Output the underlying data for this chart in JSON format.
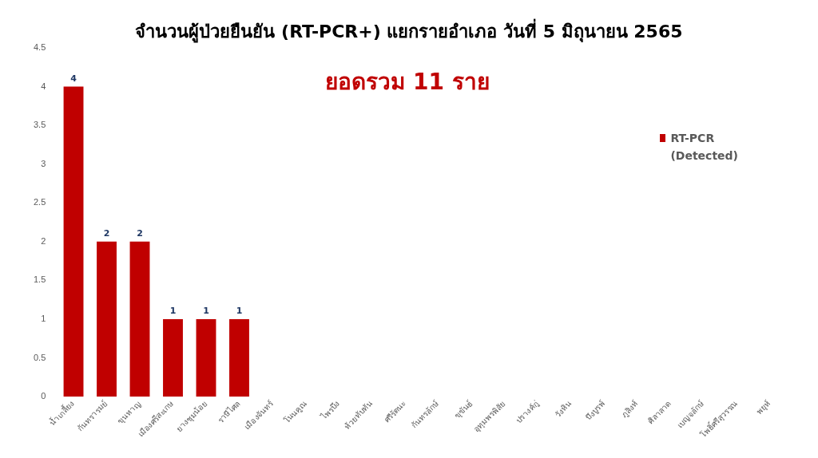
{
  "chart_data": {
    "type": "bar",
    "title": "จำนวนผู้ป่วยยืนยัน (RT-PCR+) แยกรายอำเภอ วันที่ 5 มิถุนายน 2565",
    "subtitle": "ยอดรวม 11 ราย",
    "categories": [
      "น้ำเกลี้ยง",
      "กันทรารมย์",
      "ขุนหาญ",
      "เมืองศรีสะเกษ",
      "ยางชุมน้อย",
      "ราษีไศล",
      "เมืองจันทร์",
      "โนนคูณ",
      "ไพรบึง",
      "ห้วยทับทัน",
      "ศรีรัตนะ",
      "กันทรลักษ์",
      "ขุขันธ์",
      "อุทุมพรพิสัย",
      "ปรางค์กู่",
      "วังหิน",
      "บึงบูรพ์",
      "ภูสิงห์",
      "ศิลาลาด",
      "เบญจลักษ์",
      "โพธิ์ศรีสุวรรณ",
      "พยุห์"
    ],
    "series": [
      {
        "name": "RT-PCR (Detected)",
        "color": "#c00000",
        "values": [
          4,
          2,
          2,
          1,
          1,
          1,
          0,
          0,
          0,
          0,
          0,
          0,
          0,
          0,
          0,
          0,
          0,
          0,
          0,
          0,
          0,
          0
        ],
        "value_labels": [
          "4",
          "2",
          "2",
          "1",
          "1",
          "1",
          null,
          null,
          null,
          null,
          null,
          null,
          null,
          null,
          null,
          null,
          null,
          null,
          null,
          null,
          null,
          null
        ]
      }
    ],
    "ylim": [
      0,
      4.5
    ],
    "yticks": [
      0,
      0.5,
      1,
      1.5,
      2,
      2.5,
      3,
      3.5,
      4,
      4.5
    ],
    "grid": false,
    "legend": "right"
  }
}
